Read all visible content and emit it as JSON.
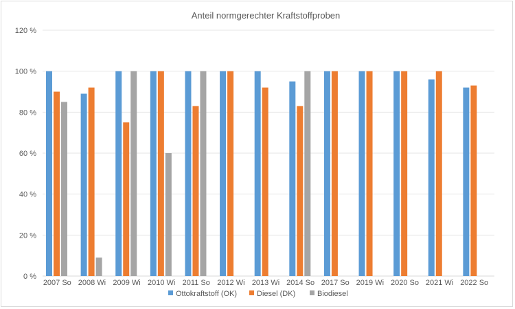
{
  "chart_data": {
    "type": "bar",
    "title": "Anteil normgerechter Kraftstoffproben",
    "xlabel": "",
    "ylabel": "",
    "ylim": [
      0,
      120
    ],
    "yticks": [
      0,
      20,
      40,
      60,
      80,
      100,
      120
    ],
    "ytick_labels": [
      "0 %",
      "20 %",
      "40 %",
      "60 %",
      "80 %",
      "100 %",
      "120 %"
    ],
    "grid": true,
    "legend_position": "bottom",
    "categories": [
      "2007 So",
      "2008 Wi",
      "2009 Wi",
      "2010 Wi",
      "2011 So",
      "2012 Wi",
      "2013 Wi",
      "2014 So",
      "2017 So",
      "2019 Wi",
      "2020 So",
      "2021 Wi",
      "2022 So"
    ],
    "series": [
      {
        "name": "Ottokraftstoff (OK)",
        "color": "#5b9bd5",
        "values": [
          100,
          89,
          100,
          100,
          100,
          100,
          100,
          95,
          100,
          100,
          100,
          96,
          92
        ]
      },
      {
        "name": "Diesel (DK)",
        "color": "#ed7d31",
        "values": [
          90,
          92,
          75,
          100,
          83,
          100,
          92,
          83,
          100,
          100,
          100,
          100,
          93
        ]
      },
      {
        "name": "Biodiesel",
        "color": "#a5a5a5",
        "values": [
          85,
          9,
          100,
          60,
          100,
          null,
          null,
          100,
          null,
          null,
          null,
          null,
          null
        ]
      }
    ]
  }
}
